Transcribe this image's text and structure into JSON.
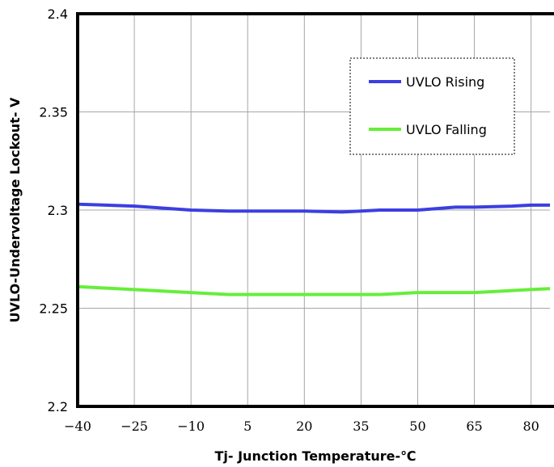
{
  "chart_data": {
    "type": "line",
    "xlabel": "Tj- Junction Temperature-℃",
    "ylabel": "UVLO-Undervoltage Lockout- V",
    "xlim": [
      -40,
      85
    ],
    "ylim": [
      2.2,
      2.4
    ],
    "x_ticks": [
      "−40",
      "−25",
      "−10",
      "5",
      "20",
      "35",
      "50",
      "65",
      "80"
    ],
    "x_tick_values": [
      -40,
      -25,
      -10,
      5,
      20,
      35,
      50,
      65,
      80
    ],
    "y_ticks": [
      "2.4",
      "2.35",
      "2.3",
      "2.25",
      "2.2"
    ],
    "y_tick_values": [
      2.4,
      2.35,
      2.3,
      2.25,
      2.2
    ],
    "grid": true,
    "legend_position": "top-right",
    "series": [
      {
        "name": "UVLO Rising",
        "color": "#3b3fe0",
        "x": [
          -40,
          -25,
          -10,
          0,
          5,
          20,
          30,
          35,
          40,
          50,
          60,
          65,
          75,
          80,
          85
        ],
        "y": [
          2.303,
          2.302,
          2.3,
          2.2995,
          2.2995,
          2.2995,
          2.299,
          2.2995,
          2.3,
          2.3,
          2.3015,
          2.3015,
          2.302,
          2.3025,
          2.3025
        ]
      },
      {
        "name": "UVLO Falling",
        "color": "#66ee3a",
        "x": [
          -40,
          -25,
          -10,
          0,
          5,
          20,
          35,
          40,
          50,
          60,
          65,
          80,
          85
        ],
        "y": [
          2.261,
          2.2595,
          2.258,
          2.257,
          2.257,
          2.257,
          2.257,
          2.257,
          2.258,
          2.258,
          2.258,
          2.2595,
          2.26
        ]
      }
    ]
  }
}
